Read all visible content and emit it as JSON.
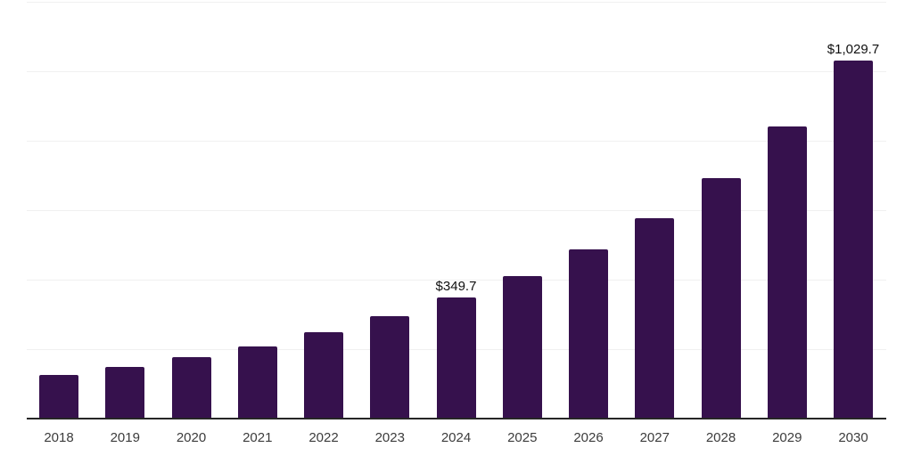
{
  "chart": {
    "background_color": "#ffffff",
    "bar_color": "#36114D",
    "axis_line_color": "#262626",
    "gridline_color": "#f0f0f0",
    "tick_label_color": "#3c3c3c",
    "data_label_color": "#0f0f0f"
  },
  "chart_data": {
    "type": "bar",
    "title": "",
    "xlabel": "",
    "ylabel": "",
    "categories": [
      "2018",
      "2019",
      "2020",
      "2021",
      "2022",
      "2023",
      "2024",
      "2025",
      "2026",
      "2027",
      "2028",
      "2029",
      "2030"
    ],
    "values": [
      126.0,
      149.9,
      177.3,
      207.5,
      248.5,
      294.9,
      349.7,
      411.3,
      486.5,
      578.2,
      692.0,
      841.1,
      1029.7
    ],
    "value_prefix": "$",
    "ylim": [
      0,
      1200
    ],
    "gridline_values": [
      200,
      400,
      600,
      800,
      1000,
      1200
    ],
    "grid": "horizontal-only",
    "legend": "none",
    "y_axis_tick_labels": "none",
    "data_labels": [
      {
        "category": "2024",
        "text": "$349.7"
      },
      {
        "category": "2030",
        "text": "$1,029.7"
      }
    ],
    "note": "Only the 2024 and 2030 bars carry visible value labels; other values are estimated from bar heights against gridlines"
  }
}
